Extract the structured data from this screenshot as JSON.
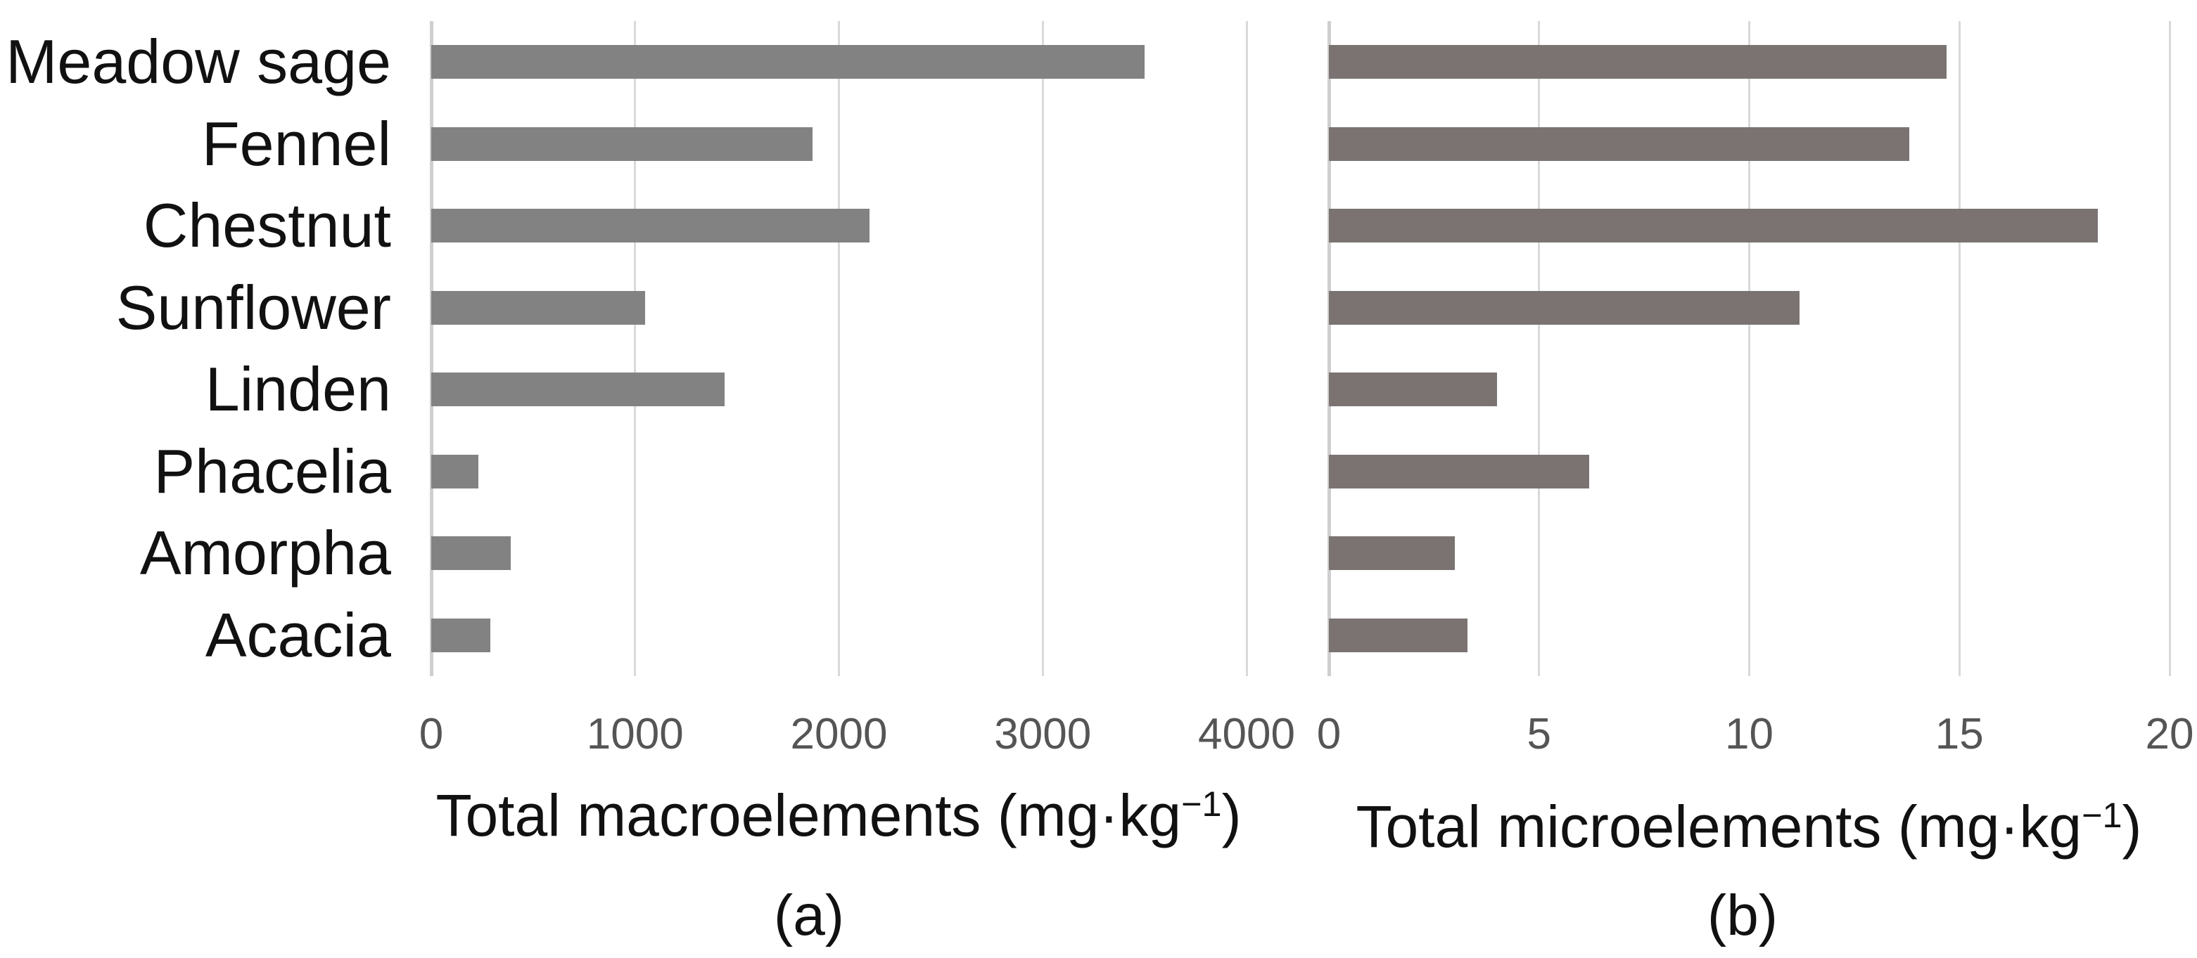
{
  "figure": {
    "background": "#ffffff",
    "categories": [
      "Meadow sage",
      "Fennel",
      "Chestnut",
      "Sunflower",
      "Linden",
      "Phacelia",
      "Amorpha",
      "Acacia"
    ]
  },
  "styles": {
    "gridline_color": "#d9d9d9",
    "axis_line_color": "#cfcfcf",
    "tick_label_color": "#555555",
    "category_label_color": "#111111",
    "title_color": "#111111",
    "panel_a_bar_color": "#828282",
    "panel_b_bar_color": "#7a7372"
  },
  "chart_data": [
    {
      "type": "bar",
      "orientation": "horizontal",
      "panel_label": "(a)",
      "title": "Total macroelements (mg·kg⁻¹)",
      "title_parts": {
        "main": "Total macroelements (mg·kg",
        "sup": "−1",
        "end": ")"
      },
      "categories": [
        "Meadow sage",
        "Fennel",
        "Chestnut",
        "Sunflower",
        "Linden",
        "Phacelia",
        "Amorpha",
        "Acacia"
      ],
      "values": [
        3500,
        1870,
        2150,
        1050,
        1440,
        230,
        390,
        290
      ],
      "xlabel": "Total macroelements (mg·kg⁻¹)",
      "xlim": [
        0,
        4000
      ],
      "xticks": [
        0,
        1000,
        2000,
        3000,
        4000
      ],
      "bar_color": "#828282",
      "grid": true,
      "legend": false
    },
    {
      "type": "bar",
      "orientation": "horizontal",
      "panel_label": "(b)",
      "title": "Total microelements (mg·kg⁻¹)",
      "title_parts": {
        "main": "Total microelements (mg·kg",
        "sup": "−1",
        "end": ")"
      },
      "categories": [
        "Meadow sage",
        "Fennel",
        "Chestnut",
        "Sunflower",
        "Linden",
        "Phacelia",
        "Amorpha",
        "Acacia"
      ],
      "values": [
        14.7,
        13.8,
        18.3,
        11.2,
        4.0,
        6.2,
        3.0,
        3.3
      ],
      "xlabel": "Total microelements (mg·kg⁻¹)",
      "xlim": [
        0,
        20
      ],
      "xticks": [
        0,
        5,
        10,
        15,
        20
      ],
      "bar_color": "#7a7372",
      "grid": true,
      "legend": false
    }
  ]
}
